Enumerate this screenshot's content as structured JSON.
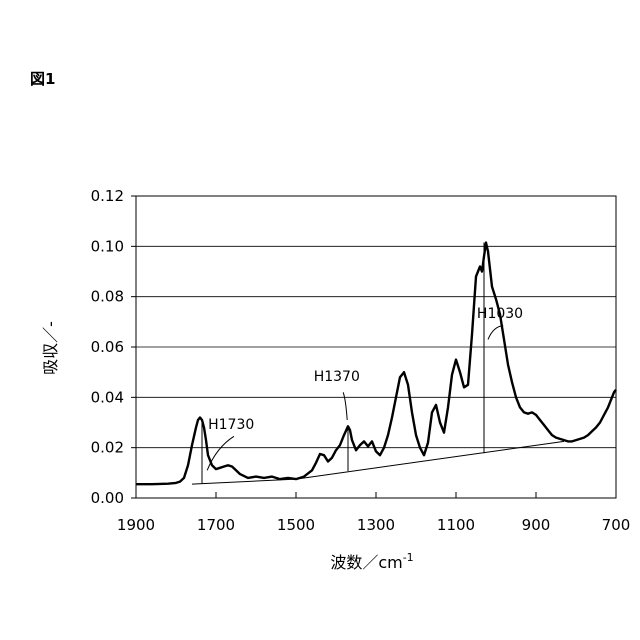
{
  "figure_label": "図1",
  "chart_data": {
    "type": "line",
    "title": "",
    "xlabel": "波数／cm",
    "xlabel_sup": "-1",
    "ylabel": "吸収／-",
    "xlim": [
      1900,
      700
    ],
    "ylim": [
      0,
      0.12
    ],
    "x_reversed": true,
    "grid": "horizontal",
    "x_ticks": [
      1900,
      1700,
      1500,
      1300,
      1100,
      900,
      700
    ],
    "x_tick_labels": [
      "1900",
      "1700",
      "1500",
      "1300",
      "1100",
      "900",
      "700"
    ],
    "y_ticks": [
      0,
      0.02,
      0.04,
      0.06,
      0.08,
      0.1,
      0.12
    ],
    "y_tick_labels": [
      "0.00",
      "0.02",
      "0.04",
      "0.06",
      "0.08",
      "0.10",
      "0.12"
    ],
    "series": [
      {
        "x": [
          1900,
          1860,
          1840,
          1820,
          1800,
          1790,
          1780,
          1770,
          1760,
          1750,
          1745,
          1740,
          1735,
          1730,
          1725,
          1720,
          1710,
          1700,
          1690,
          1680,
          1670,
          1660,
          1650,
          1640,
          1620,
          1600,
          1580,
          1560,
          1540,
          1520,
          1500,
          1480,
          1460,
          1450,
          1440,
          1430,
          1420,
          1410,
          1400,
          1390,
          1380,
          1370,
          1365,
          1360,
          1350,
          1340,
          1330,
          1320,
          1310,
          1300,
          1290,
          1280,
          1270,
          1260,
          1250,
          1240,
          1230,
          1220,
          1210,
          1200,
          1190,
          1180,
          1170,
          1160,
          1150,
          1140,
          1130,
          1120,
          1110,
          1100,
          1090,
          1080,
          1070,
          1060,
          1050,
          1040,
          1035,
          1030,
          1025,
          1020,
          1010,
          1000,
          990,
          980,
          970,
          960,
          950,
          940,
          930,
          920,
          910,
          900,
          890,
          880,
          870,
          860,
          850,
          840,
          830,
          820,
          810,
          800,
          790,
          780,
          770,
          760,
          750,
          740,
          730,
          720,
          710,
          705,
          700
        ],
        "y": [
          0.0055,
          0.0055,
          0.0056,
          0.0057,
          0.006,
          0.0065,
          0.008,
          0.013,
          0.021,
          0.028,
          0.031,
          0.032,
          0.031,
          0.028,
          0.023,
          0.017,
          0.013,
          0.0115,
          0.012,
          0.0125,
          0.013,
          0.0125,
          0.011,
          0.0095,
          0.008,
          0.0085,
          0.008,
          0.0085,
          0.0075,
          0.008,
          0.0075,
          0.0085,
          0.011,
          0.014,
          0.0175,
          0.017,
          0.0145,
          0.016,
          0.019,
          0.021,
          0.025,
          0.0285,
          0.027,
          0.023,
          0.019,
          0.021,
          0.0225,
          0.0205,
          0.0225,
          0.0185,
          0.017,
          0.02,
          0.025,
          0.032,
          0.04,
          0.048,
          0.05,
          0.045,
          0.034,
          0.025,
          0.02,
          0.017,
          0.022,
          0.034,
          0.037,
          0.03,
          0.026,
          0.036,
          0.049,
          0.055,
          0.05,
          0.044,
          0.045,
          0.065,
          0.088,
          0.092,
          0.09,
          0.096,
          0.1015,
          0.098,
          0.084,
          0.079,
          0.073,
          0.063,
          0.053,
          0.046,
          0.04,
          0.036,
          0.034,
          0.0335,
          0.034,
          0.033,
          0.031,
          0.029,
          0.027,
          0.025,
          0.024,
          0.0235,
          0.023,
          0.0225,
          0.0225,
          0.023,
          0.0235,
          0.024,
          0.025,
          0.0265,
          0.028,
          0.03,
          0.033,
          0.036,
          0.04,
          0.042,
          0.043
        ]
      }
    ],
    "baselines": [
      {
        "x": [
          1760,
          1500
        ],
        "y": [
          0.0055,
          0.0075
        ]
      },
      {
        "x": [
          1500,
          830
        ],
        "y": [
          0.0075,
          0.0225
        ]
      }
    ],
    "peak_markers": [
      {
        "x": 1735,
        "y_top": 0.031,
        "y_bottom": 0.0058
      },
      {
        "x": 1370,
        "y_top": 0.0285,
        "y_bottom": 0.0107
      },
      {
        "x": 1030,
        "y_top": 0.1015,
        "y_bottom": 0.0178
      }
    ],
    "annotations": [
      {
        "text": "H1730",
        "x": 1662,
        "y": 0.0275,
        "arrow_from": [
          1655,
          0.0245
        ],
        "arrow_to": [
          1722,
          0.011
        ]
      },
      {
        "text": "H1370",
        "x": 1398,
        "y": 0.0465,
        "arrow_from": [
          1382,
          0.042
        ],
        "arrow_to": [
          1372,
          0.031
        ]
      },
      {
        "text": "H1030",
        "x": 990,
        "y": 0.0715,
        "arrow_from": [
          982,
          0.0685
        ],
        "arrow_to": [
          1020,
          0.063
        ]
      }
    ]
  }
}
